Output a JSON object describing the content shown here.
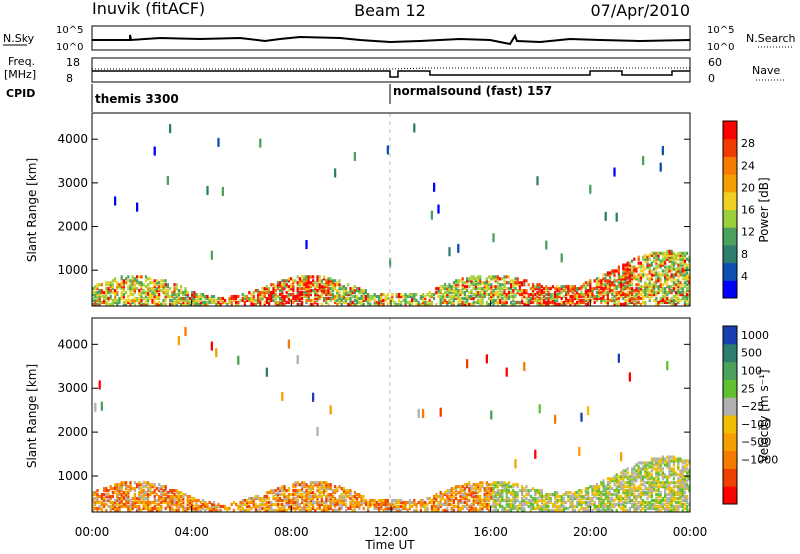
{
  "header": {
    "site": "Inuvik (fitACF)",
    "beam": "Beam 12",
    "date": "07/Apr/2010"
  },
  "nsky": {
    "label": "N.Sky",
    "ticks": [
      "10^5",
      "10^0"
    ],
    "right_ticks": [
      "10^5",
      "10^0"
    ],
    "right_label": "N.Search"
  },
  "freq": {
    "label_line1": "Freq.",
    "label_line2": "[MHz]",
    "ticks": [
      "18",
      "8"
    ],
    "right_ticks": [
      "60",
      "0"
    ],
    "right_label": "Nave"
  },
  "cpid": {
    "label": "CPID",
    "segments": [
      "themis 3300",
      "normalsound (fast) 157"
    ]
  },
  "time_axis": {
    "label": "Time UT",
    "ticks": [
      "00:00",
      "04:00",
      "08:00",
      "12:00",
      "16:00",
      "20:00",
      "00:00"
    ]
  },
  "colors": {
    "power": [
      "#0000ff",
      "#0f4fb0",
      "#2e7d6e",
      "#4ca15c",
      "#9ccf3c",
      "#f0d020",
      "#f5a000",
      "#f57a00",
      "#f03c00",
      "#ff0000"
    ],
    "velocity_bg": "#ffffff"
  },
  "chart_data": [
    {
      "type": "heatmap",
      "panel": "power",
      "ylabel": "Slant Range [km]",
      "x_range_hours": [
        0,
        24
      ],
      "ylim": [
        180,
        4600
      ],
      "yticks": [
        "1000",
        "2000",
        "3000",
        "4000"
      ],
      "colorbar_label": "Power [dB]",
      "colorbar_ticks": [
        "4",
        "8",
        "12",
        "16",
        "20",
        "24",
        "28"
      ],
      "colorbar_range": [
        0,
        32
      ]
    },
    {
      "type": "heatmap",
      "panel": "velocity",
      "ylabel": "Slant Range [km]",
      "x_range_hours": [
        0,
        24
      ],
      "ylim": [
        180,
        4600
      ],
      "yticks": [
        "1000",
        "2000",
        "3000",
        "4000"
      ],
      "colorbar_label": "Velocity [m s⁻¹]",
      "colorbar_ticks": [
        "1000",
        "500",
        "100",
        "25",
        "−25",
        "−100",
        "−500",
        "−1000"
      ]
    }
  ]
}
